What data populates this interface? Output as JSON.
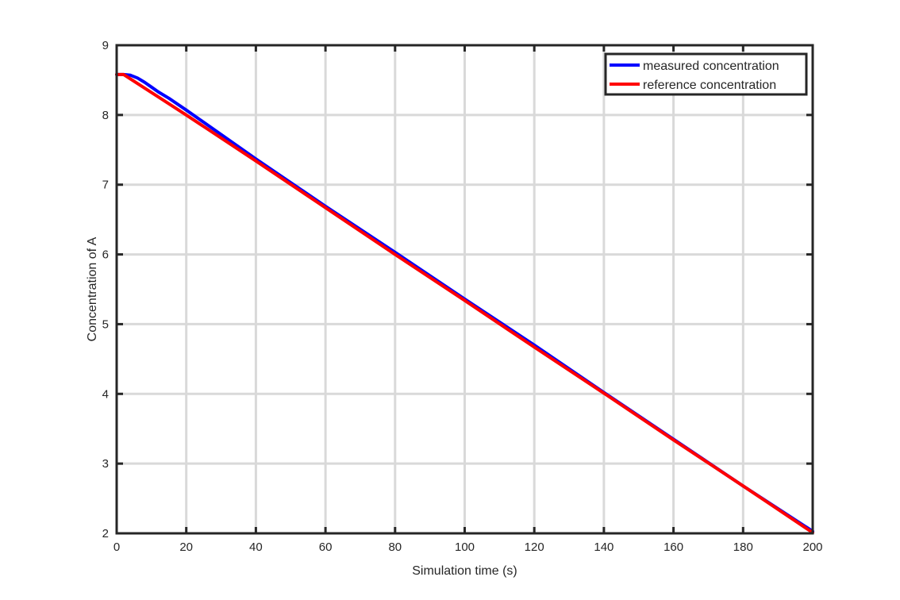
{
  "chart_data": {
    "type": "line",
    "title": "",
    "xlabel": "Simulation time (s)",
    "ylabel": "Concentration of A",
    "xlim": [
      0,
      200
    ],
    "ylim": [
      2,
      9
    ],
    "xticks": [
      0,
      20,
      40,
      60,
      80,
      100,
      120,
      140,
      160,
      180,
      200
    ],
    "yticks": [
      2,
      3,
      4,
      5,
      6,
      7,
      8,
      9
    ],
    "grid": true,
    "legend_position": "top-right",
    "series": [
      {
        "name": "measured concentration",
        "color": "#0000ff",
        "x": [
          0,
          2,
          4,
          6,
          8,
          10,
          12,
          15,
          20,
          40,
          60,
          80,
          100,
          120,
          140,
          160,
          180,
          200
        ],
        "y": [
          8.58,
          8.58,
          8.57,
          8.53,
          8.47,
          8.4,
          8.33,
          8.24,
          8.07,
          7.37,
          6.69,
          6.03,
          5.36,
          4.7,
          4.02,
          3.35,
          2.68,
          2.03
        ]
      },
      {
        "name": "reference concentration",
        "color": "#ff0000",
        "x": [
          0,
          2,
          20,
          40,
          60,
          80,
          100,
          120,
          140,
          160,
          180,
          200
        ],
        "y": [
          8.58,
          8.58,
          8.0,
          7.34,
          6.67,
          6.0,
          5.34,
          4.67,
          4.01,
          3.34,
          2.68,
          2.01
        ]
      }
    ]
  }
}
